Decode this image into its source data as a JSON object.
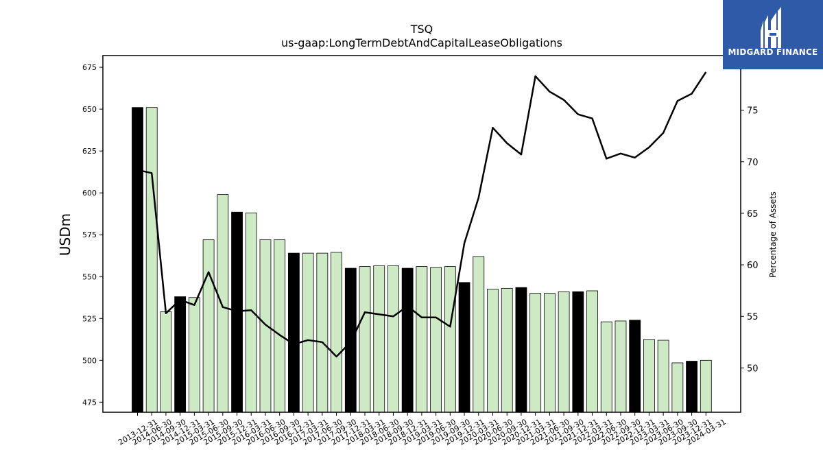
{
  "colors": {
    "highlight_bar": "#000000",
    "normal_bar": "#cdeac5",
    "line": "#000000",
    "logo_bg": "#2e5aa8"
  },
  "logo": {
    "text": "MIDGARD FINANCE",
    "icon": "midgard-logo-icon"
  },
  "chart_data": {
    "type": "bar",
    "title": "TSQ",
    "subtitle": "us-gaap:LongTermDebtAndCapitalLeaseObligations",
    "ylabel": "USDm",
    "y2label": "Percentage of Assets",
    "ylim": [
      469,
      682
    ],
    "y2lim": [
      45.7,
      80.3
    ],
    "yticks": [
      475,
      500,
      525,
      550,
      575,
      600,
      625,
      650,
      675
    ],
    "y2ticks": [
      50,
      55,
      60,
      65,
      70,
      75
    ],
    "categories": [
      "2013-12-31",
      "2014-06-30",
      "2014-09-30",
      "2014-12-31",
      "2015-03-31",
      "2015-06-30",
      "2015-09-30",
      "2015-12-31",
      "2016-03-31",
      "2016-06-30",
      "2016-09-30",
      "2016-12-31",
      "2017-03-31",
      "2017-06-30",
      "2017-09-30",
      "2017-12-31",
      "2018-03-31",
      "2018-06-30",
      "2018-09-30",
      "2018-12-31",
      "2019-03-31",
      "2019-06-30",
      "2019-09-30",
      "2019-12-31",
      "2020-03-31",
      "2020-06-30",
      "2020-09-30",
      "2020-12-31",
      "2021-03-31",
      "2021-06-30",
      "2021-09-30",
      "2021-12-31",
      "2022-03-31",
      "2022-06-30",
      "2022-09-30",
      "2022-12-31",
      "2023-03-31",
      "2023-06-30",
      "2023-09-30",
      "2023-12-31",
      "2024-03-31"
    ],
    "series": [
      {
        "type": "bar",
        "values": [
          651,
          651,
          529,
          538,
          537.5,
          572,
          599,
          588.5,
          588,
          572,
          572,
          564,
          564,
          564,
          564.5,
          555,
          556,
          556.5,
          556.5,
          555,
          556,
          555.5,
          556,
          546.5,
          562,
          542.5,
          543,
          543.5,
          540,
          540,
          541,
          541,
          541.5,
          523,
          523.5,
          524,
          512.5,
          512,
          498.5,
          499.5,
          500
        ],
        "highlight": [
          true,
          false,
          false,
          true,
          false,
          false,
          false,
          true,
          false,
          false,
          false,
          true,
          false,
          false,
          false,
          true,
          false,
          false,
          false,
          true,
          false,
          false,
          false,
          true,
          false,
          false,
          false,
          true,
          false,
          false,
          false,
          true,
          false,
          false,
          false,
          true,
          false,
          false,
          false,
          true,
          false
        ]
      },
      {
        "type": "line",
        "axis": "right",
        "values": [
          69.2,
          68.9,
          55.3,
          56.6,
          56.1,
          59.3,
          55.9,
          55.5,
          55.6,
          54.2,
          53.2,
          52.3,
          52.7,
          52.5,
          51.1,
          52.5,
          55.4,
          55.2,
          55.0,
          56.0,
          54.9,
          54.9,
          54.0,
          62.1,
          66.5,
          73.3,
          71.8,
          70.7,
          78.3,
          76.8,
          76.0,
          74.6,
          74.2,
          70.3,
          70.8,
          70.4,
          71.4,
          72.8,
          75.9,
          76.6,
          78.7
        ]
      }
    ],
    "grid": false,
    "legend": "none"
  }
}
